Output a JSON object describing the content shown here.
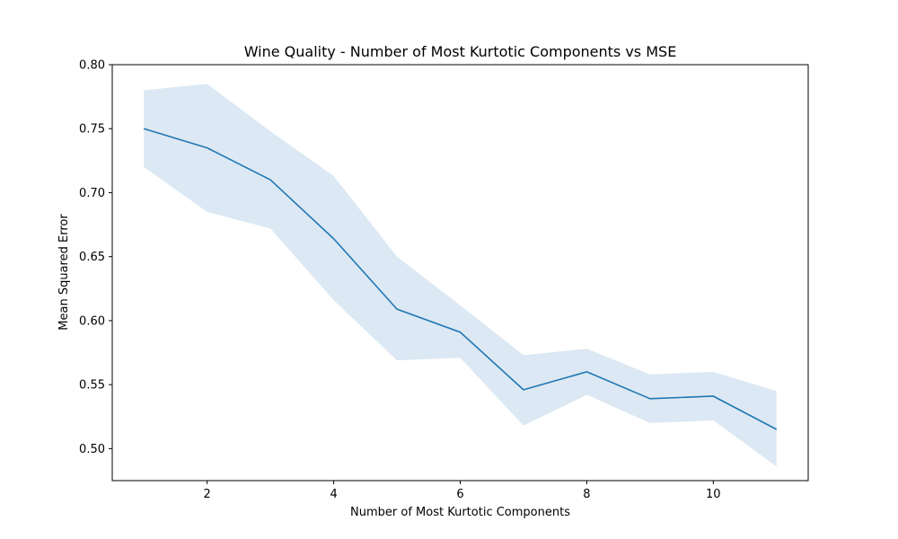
{
  "chart_data": {
    "type": "line",
    "title": "Wine Quality - Number of Most Kurtotic Components vs MSE",
    "xlabel": "Number of Most Kurtotic Components",
    "ylabel": "Mean Squared Error",
    "xlim": [
      0.5,
      11.5
    ],
    "ylim": [
      0.475,
      0.8
    ],
    "x_ticks": [
      2,
      4,
      6,
      8,
      10
    ],
    "x_tick_labels": [
      "2",
      "4",
      "6",
      "8",
      "10"
    ],
    "y_ticks": [
      0.5,
      0.55,
      0.6,
      0.65,
      0.7,
      0.75,
      0.8
    ],
    "y_tick_labels": [
      "0.50",
      "0.55",
      "0.60",
      "0.65",
      "0.70",
      "0.75",
      "0.80"
    ],
    "grid": false,
    "x": [
      1,
      2,
      3,
      4,
      5,
      6,
      7,
      8,
      9,
      10,
      11
    ],
    "series": [
      {
        "values": [
          0.75,
          0.735,
          0.71,
          0.664,
          0.609,
          0.591,
          0.546,
          0.56,
          0.539,
          0.541,
          0.515
        ],
        "upper": [
          0.78,
          0.785,
          0.748,
          0.713,
          0.65,
          0.612,
          0.573,
          0.578,
          0.558,
          0.56,
          0.545
        ],
        "lower": [
          0.72,
          0.685,
          0.672,
          0.616,
          0.569,
          0.571,
          0.518,
          0.542,
          0.52,
          0.522,
          0.486
        ],
        "color": "#1f77b4",
        "band_color": "#dce8f3"
      }
    ]
  }
}
